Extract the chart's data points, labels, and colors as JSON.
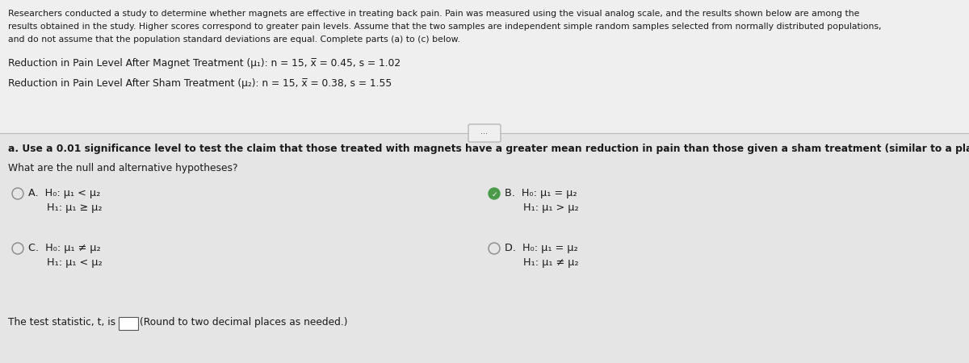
{
  "bg_top": "#efefef",
  "bg_bottom": "#e5e5e5",
  "divider_color": "#bbbbbb",
  "intro_text_line1": "Researchers conducted a study to determine whether magnets are effective in treating back pain. Pain was measured using the visual analog scale, and the results shown below are among the",
  "intro_text_line2": "results obtained in the study. Higher scores correspond to greater pain levels. Assume that the two samples are independent simple random samples selected from normally distributed populations,",
  "intro_text_line3": "and do not assume that the population standard deviations are equal. Complete parts (a) to (c) below.",
  "data_line1": "Reduction in Pain Level After Magnet Treatment (μ₁): n = 15, x̅ = 0.45, s = 1.02",
  "data_line2": "Reduction in Pain Level After Sham Treatment (μ₂): n = 15, x̅ = 0.38, s = 1.55",
  "part_a_text": "a. Use a 0.01 significance level to test the claim that those treated with magnets have a greater mean reduction in pain than those given a sham treatment (similar to a placebo).",
  "hypotheses_prompt": "What are the null and alternative hypotheses?",
  "optA_label": "A.",
  "optA_h0": "H₀: μ₁ < μ₂",
  "optA_h1": "H₁: μ₁ ≥ μ₂",
  "optB_label": "B.",
  "optB_h0": "H₀: μ₁ = μ₂",
  "optB_h1": "H₁: μ₁ > μ₂",
  "optC_label": "C.",
  "optC_h0": "H₀: μ₁ ≠ μ₂",
  "optC_h1": "H₁: μ₁ < μ₂",
  "optD_label": "D.",
  "optD_h0": "H₀: μ₁ = μ₂",
  "optD_h1": "H₁: μ₁ ≠ μ₂",
  "test_stat_text": "The test statistic, t, is",
  "round_text": "(Round to two decimal places as needed.)",
  "font_size_intro": 7.8,
  "font_size_data": 8.8,
  "font_size_body": 8.8,
  "font_size_options": 9.2,
  "text_color": "#1a1a1a",
  "circle_color": "#888888",
  "check_color": "#4a9a4a"
}
